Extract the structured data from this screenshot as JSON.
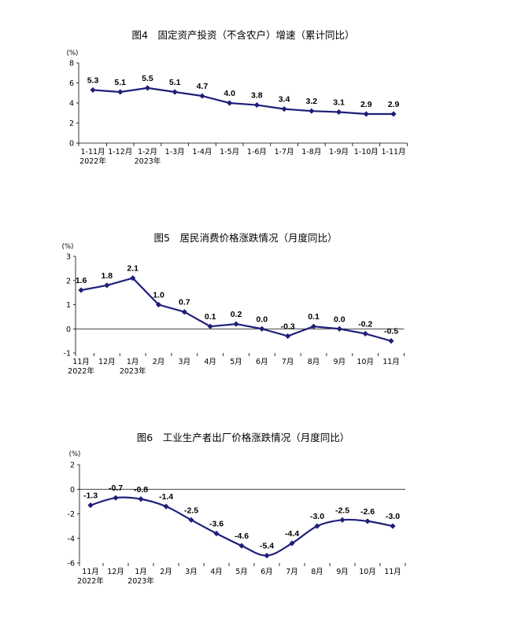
{
  "chart_data": [
    {
      "type": "line",
      "title": "图4　固定资产投资（不含农户）增速（累计同比）",
      "unit": "(%)",
      "categories": [
        "1-11月",
        "1-12月",
        "1-2月",
        "1-3月",
        "1-4月",
        "1-5月",
        "1-6月",
        "1-7月",
        "1-8月",
        "1-9月",
        "1-10月",
        "1-11月"
      ],
      "year_labels": [
        {
          "index": 0,
          "text": "2022年"
        },
        {
          "index": 2,
          "text": "2023年"
        }
      ],
      "values": [
        5.3,
        5.1,
        5.5,
        5.1,
        4.7,
        4.0,
        3.8,
        3.4,
        3.2,
        3.1,
        2.9,
        2.9
      ],
      "data_labels": [
        "5.3",
        "5.1",
        "5.5",
        "5.1",
        "4.7",
        "4.0",
        "3.8",
        "3.4",
        "3.2",
        "3.1",
        "2.9",
        "2.9"
      ],
      "yticks": [
        "0",
        "2",
        "4",
        "6",
        "8"
      ],
      "ylim": [
        0,
        8
      ],
      "smooth": false,
      "color": "#1f1f7a"
    },
    {
      "type": "line",
      "title": "图5　居民消费价格涨跌情况（月度同比）",
      "unit": "(%)",
      "categories": [
        "11月",
        "12月",
        "1月",
        "2月",
        "3月",
        "4月",
        "5月",
        "6月",
        "7月",
        "8月",
        "9月",
        "10月",
        "11月"
      ],
      "year_labels": [
        {
          "index": 0,
          "text": "2022年"
        },
        {
          "index": 2,
          "text": "2023年"
        }
      ],
      "values": [
        1.6,
        1.8,
        2.1,
        1.0,
        0.7,
        0.1,
        0.2,
        0.0,
        -0.3,
        0.1,
        0.0,
        -0.2,
        -0.5
      ],
      "data_labels": [
        "1.6",
        "1.8",
        "2.1",
        "1.0",
        "0.7",
        "0.1",
        "0.2",
        "0.0",
        "-0.3",
        "0.1",
        "0.0",
        "-0.2",
        "-0.5"
      ],
      "yticks": [
        "-1",
        "0",
        "1",
        "2",
        "3"
      ],
      "ylim": [
        -1,
        3
      ],
      "smooth": false,
      "color": "#1f1f7a"
    },
    {
      "type": "line",
      "title": "图6　工业生产者出厂价格涨跌情况（月度同比）",
      "unit": "(%)",
      "categories": [
        "11月",
        "12月",
        "1月",
        "2月",
        "3月",
        "4月",
        "5月",
        "6月",
        "7月",
        "8月",
        "9月",
        "10月",
        "11月"
      ],
      "year_labels": [
        {
          "index": 0,
          "text": "2022年"
        },
        {
          "index": 2,
          "text": "2023年"
        }
      ],
      "values": [
        -1.3,
        -0.7,
        -0.8,
        -1.4,
        -2.5,
        -3.6,
        -4.6,
        -5.4,
        -4.4,
        -3.0,
        -2.5,
        -2.6,
        -3.0
      ],
      "data_labels": [
        "-1.3",
        "-0.7",
        "-0.8",
        "-1.4",
        "-2.5",
        "-3.6",
        "-4.6",
        "-5.4",
        "-4.4",
        "-3.0",
        "-2.5",
        "-2.6",
        "-3.0"
      ],
      "yticks": [
        "-6",
        "-4",
        "-2",
        "0",
        "2"
      ],
      "ylim": [
        -6,
        2
      ],
      "smooth": true,
      "color": "#1f1f7a"
    }
  ]
}
